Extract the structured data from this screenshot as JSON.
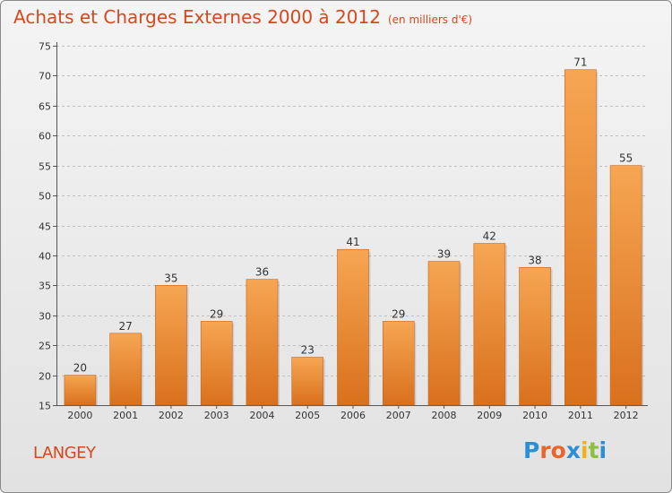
{
  "header": {
    "title": "Achats et Charges Externes 2000 à 2012",
    "subtitle": "(en milliers d'€)"
  },
  "footer": {
    "city": "LANGEY",
    "logo_letters": [
      "P",
      "r",
      "o",
      "x",
      "i",
      "t",
      "i"
    ],
    "logo_colors": [
      "#2a8fd6",
      "#e8662c",
      "#e8662c",
      "#2a8fd6",
      "#f0b21c",
      "#8dc03f",
      "#2a8fd6"
    ]
  },
  "colors": {
    "bar_light": "#f6a653",
    "bar_dark": "#d9701c",
    "title": "#d7481e",
    "grid": "#bfbfbf"
  },
  "chart_data": {
    "type": "bar",
    "title": "Achats et Charges Externes 2000 à 2012",
    "subtitle": "(en milliers d'€)",
    "xlabel": "",
    "ylabel": "",
    "categories": [
      "2000",
      "2001",
      "2002",
      "2003",
      "2004",
      "2005",
      "2006",
      "2007",
      "2008",
      "2009",
      "2010",
      "2011",
      "2012"
    ],
    "values": [
      20,
      27,
      35,
      29,
      36,
      23,
      41,
      29,
      39,
      42,
      38,
      71,
      55
    ],
    "ylim": [
      15,
      75
    ],
    "yticks": [
      15,
      20,
      25,
      30,
      35,
      40,
      45,
      50,
      55,
      60,
      65,
      70,
      75
    ],
    "grid": true,
    "legend": "none"
  }
}
